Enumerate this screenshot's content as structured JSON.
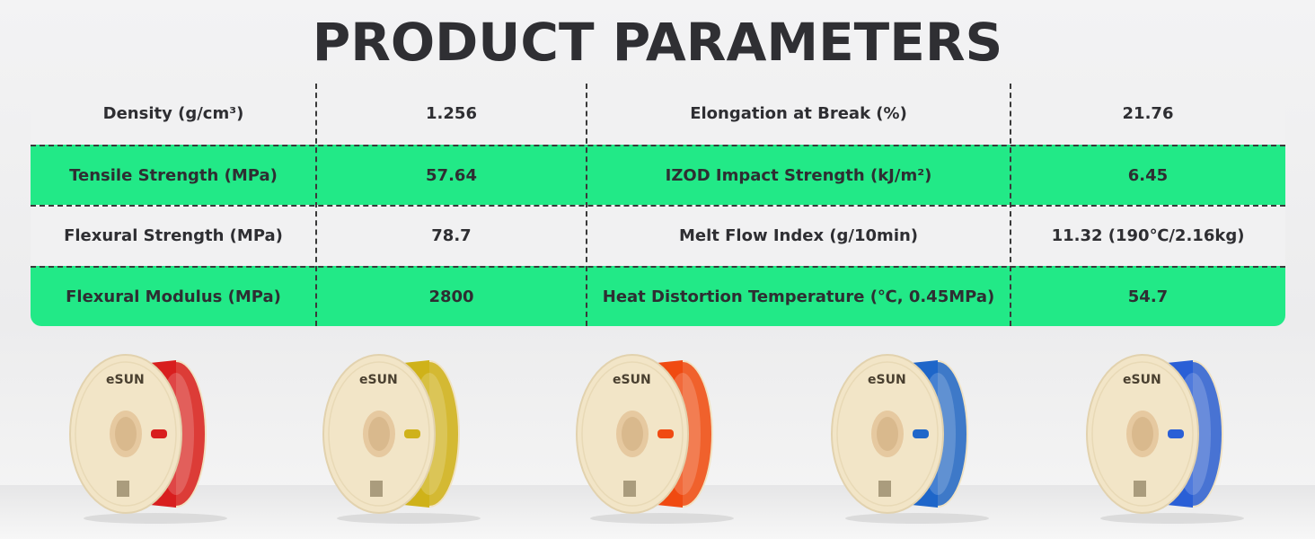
{
  "title": "PRODUCT PARAMETERS",
  "rows": [
    {
      "label1": "Density (g/cm³)",
      "value1": "1.256",
      "label2": "Elongation at Break (%)",
      "value2": "21.76",
      "style": "grey"
    },
    {
      "label1": "Tensile Strength (MPa)",
      "value1": "57.64",
      "label2": "IZOD Impact Strength (kJ/m²)",
      "value2": "6.45",
      "style": "green"
    },
    {
      "label1": "Flexural Strength (MPa)",
      "value1": "78.7",
      "label2": "Melt Flow Index (g/10min)",
      "value2": "11.32 (190℃/2.16kg)",
      "style": "grey"
    },
    {
      "label1": "Flexural Modulus (MPa)",
      "value1": "2800",
      "label2": "Heat Distortion Temperature (℃, 0.45MPa)",
      "value2": "54.7",
      "style": "green"
    }
  ],
  "colors": {
    "green": "#22e987",
    "grey": "#f1f1f2",
    "title": "#2f2f33"
  },
  "spools": [
    {
      "brand": "eSUN",
      "filament_color": "#d81e1e"
    },
    {
      "brand": "eSUN",
      "filament_color": "#cfb21a"
    },
    {
      "brand": "eSUN",
      "filament_color": "#f04a12"
    },
    {
      "brand": "eSUN",
      "filament_color": "#1f66c9"
    },
    {
      "brand": "eSUN",
      "filament_color": "#2a5fd6"
    }
  ]
}
